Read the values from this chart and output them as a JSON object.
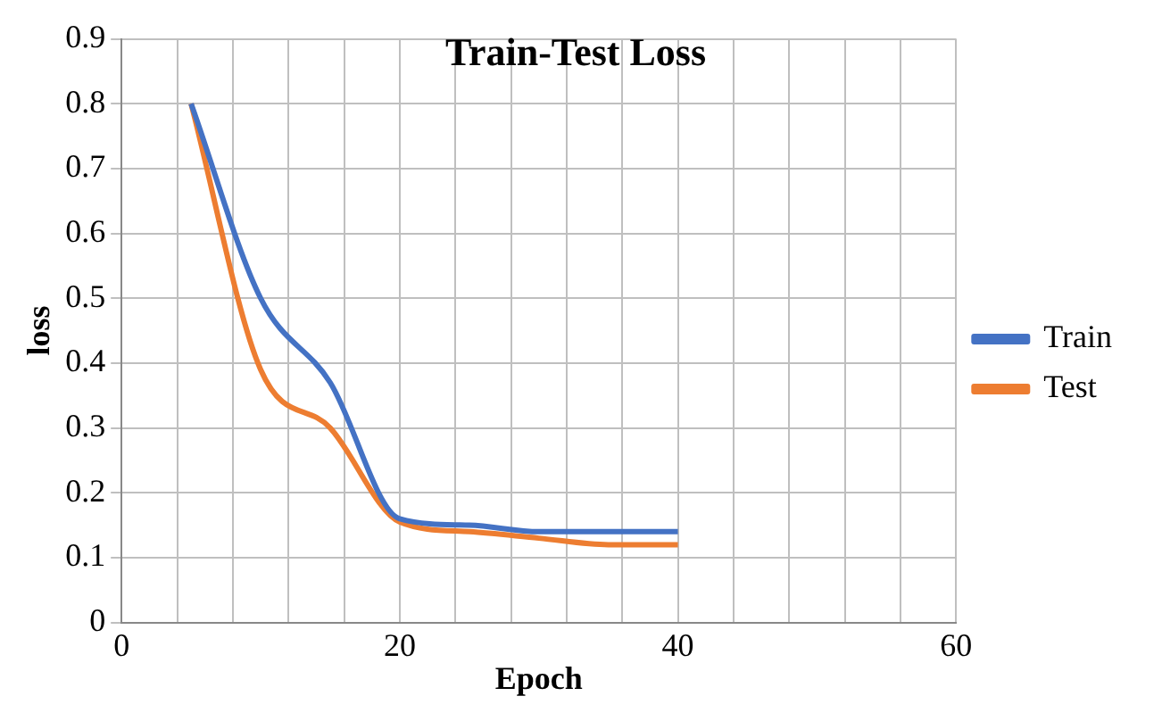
{
  "chart_data": {
    "type": "line",
    "title": "Train-Test Loss",
    "xlabel": "Epoch",
    "ylabel": "loss",
    "x": [
      5,
      10,
      15,
      20,
      25,
      30,
      35,
      40
    ],
    "series": [
      {
        "name": "Train",
        "color": "#4472c4",
        "values": [
          0.8,
          0.5,
          0.37,
          0.16,
          0.15,
          0.14,
          0.14,
          0.14
        ]
      },
      {
        "name": "Test",
        "color": "#ed7d31",
        "values": [
          0.8,
          0.39,
          0.3,
          0.155,
          0.14,
          0.13,
          0.12,
          0.12
        ]
      }
    ],
    "xlim": [
      0,
      60
    ],
    "xticks": [
      0,
      {
        "value": 4,
        "label": null
      },
      {
        "value": 8,
        "label": null
      },
      {
        "value": 12,
        "label": null
      },
      {
        "value": 16,
        "label": null
      },
      20,
      {
        "value": 24,
        "label": null
      },
      {
        "value": 28,
        "label": null
      },
      {
        "value": 32,
        "label": null
      },
      {
        "value": 36,
        "label": null
      },
      40,
      {
        "value": 44,
        "label": null
      },
      {
        "value": 48,
        "label": null
      },
      {
        "value": 52,
        "label": null
      },
      {
        "value": 56,
        "label": null
      },
      60
    ],
    "ylim": [
      0,
      0.9
    ],
    "yticks": [
      0,
      0.1,
      0.2,
      0.3,
      0.4,
      0.5,
      0.6,
      0.7,
      0.8,
      0.9
    ],
    "grid": true,
    "legend": "right",
    "marker": "none",
    "line_style": "solid"
  }
}
